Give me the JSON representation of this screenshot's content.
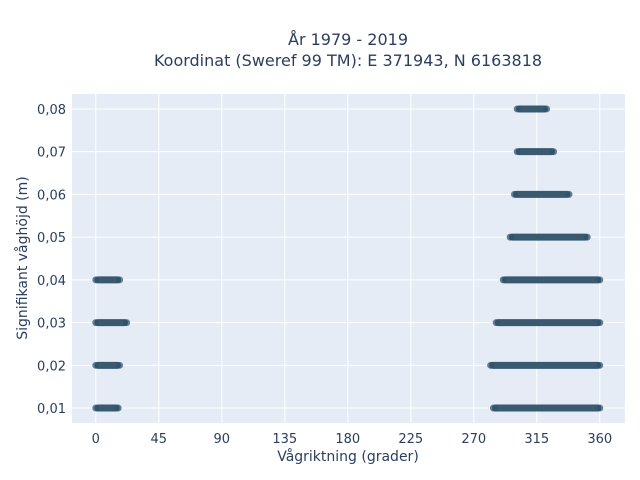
{
  "chart_data": {
    "type": "scatter",
    "title": "År 1979 - 2019",
    "subtitle": "Koordinat (Sweref 99 TM): E 371943, N 6163818",
    "xlabel": "Vågriktning (grader)",
    "ylabel": "Signifikant våghöjd (m)",
    "xlim": [
      -17,
      378
    ],
    "ylim": [
      0.0065,
      0.0835
    ],
    "xticks": [
      0,
      45,
      90,
      135,
      180,
      225,
      270,
      315,
      360
    ],
    "xtick_labels": [
      "0",
      "45",
      "90",
      "135",
      "180",
      "225",
      "270",
      "315",
      "360"
    ],
    "yticks": [
      0.01,
      0.02,
      0.03,
      0.04,
      0.05,
      0.06,
      0.07,
      0.08
    ],
    "ytick_labels": [
      "0,01",
      "0,02",
      "0,03",
      "0,04",
      "0,05",
      "0,06",
      "0,07",
      "0,08"
    ],
    "grid": true,
    "legend": false,
    "colors": {
      "plot_bg": "#e5ecf6",
      "grid": "#ffffff",
      "marker": "#2f5168",
      "text": "#2a3f5f"
    },
    "bands": [
      {
        "y": 0.01,
        "segments": [
          [
            0,
            16
          ],
          [
            284,
            360
          ]
        ]
      },
      {
        "y": 0.02,
        "segments": [
          [
            0,
            17
          ],
          [
            282,
            360
          ]
        ]
      },
      {
        "y": 0.03,
        "segments": [
          [
            0,
            22
          ],
          [
            286,
            360
          ]
        ]
      },
      {
        "y": 0.04,
        "segments": [
          [
            0,
            17
          ],
          [
            291,
            360
          ]
        ]
      },
      {
        "y": 0.05,
        "segments": [
          [
            296,
            351
          ]
        ]
      },
      {
        "y": 0.06,
        "segments": [
          [
            299,
            338
          ]
        ]
      },
      {
        "y": 0.07,
        "segments": [
          [
            301,
            327
          ]
        ]
      },
      {
        "y": 0.08,
        "segments": [
          [
            301,
            322
          ]
        ]
      }
    ]
  }
}
